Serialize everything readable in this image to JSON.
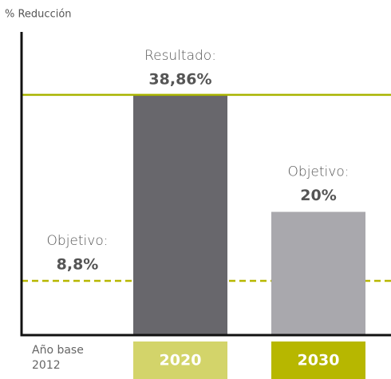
{
  "chart_data": {
    "type": "bar",
    "y_label": "% Reducción",
    "categories": [
      "Año base 2012",
      "2020",
      "2030"
    ],
    "values": [
      8.8,
      38.86,
      20
    ],
    "value_labels": [
      "8,8%",
      "38,86%",
      "20%"
    ],
    "annotations": [
      "Objetivo:",
      "Resultado:",
      "Objetivo:"
    ],
    "mark_styles": [
      "dashed-line",
      "bar-with-line",
      "bar"
    ],
    "colors": [
      "#b7b700",
      "#68676c",
      "#a9a8ad"
    ],
    "line_color": "#a9b400",
    "category_box_colors": [
      null,
      "#d3d46a",
      "#b7b700"
    ],
    "ylim": [
      0,
      49.2
    ]
  }
}
